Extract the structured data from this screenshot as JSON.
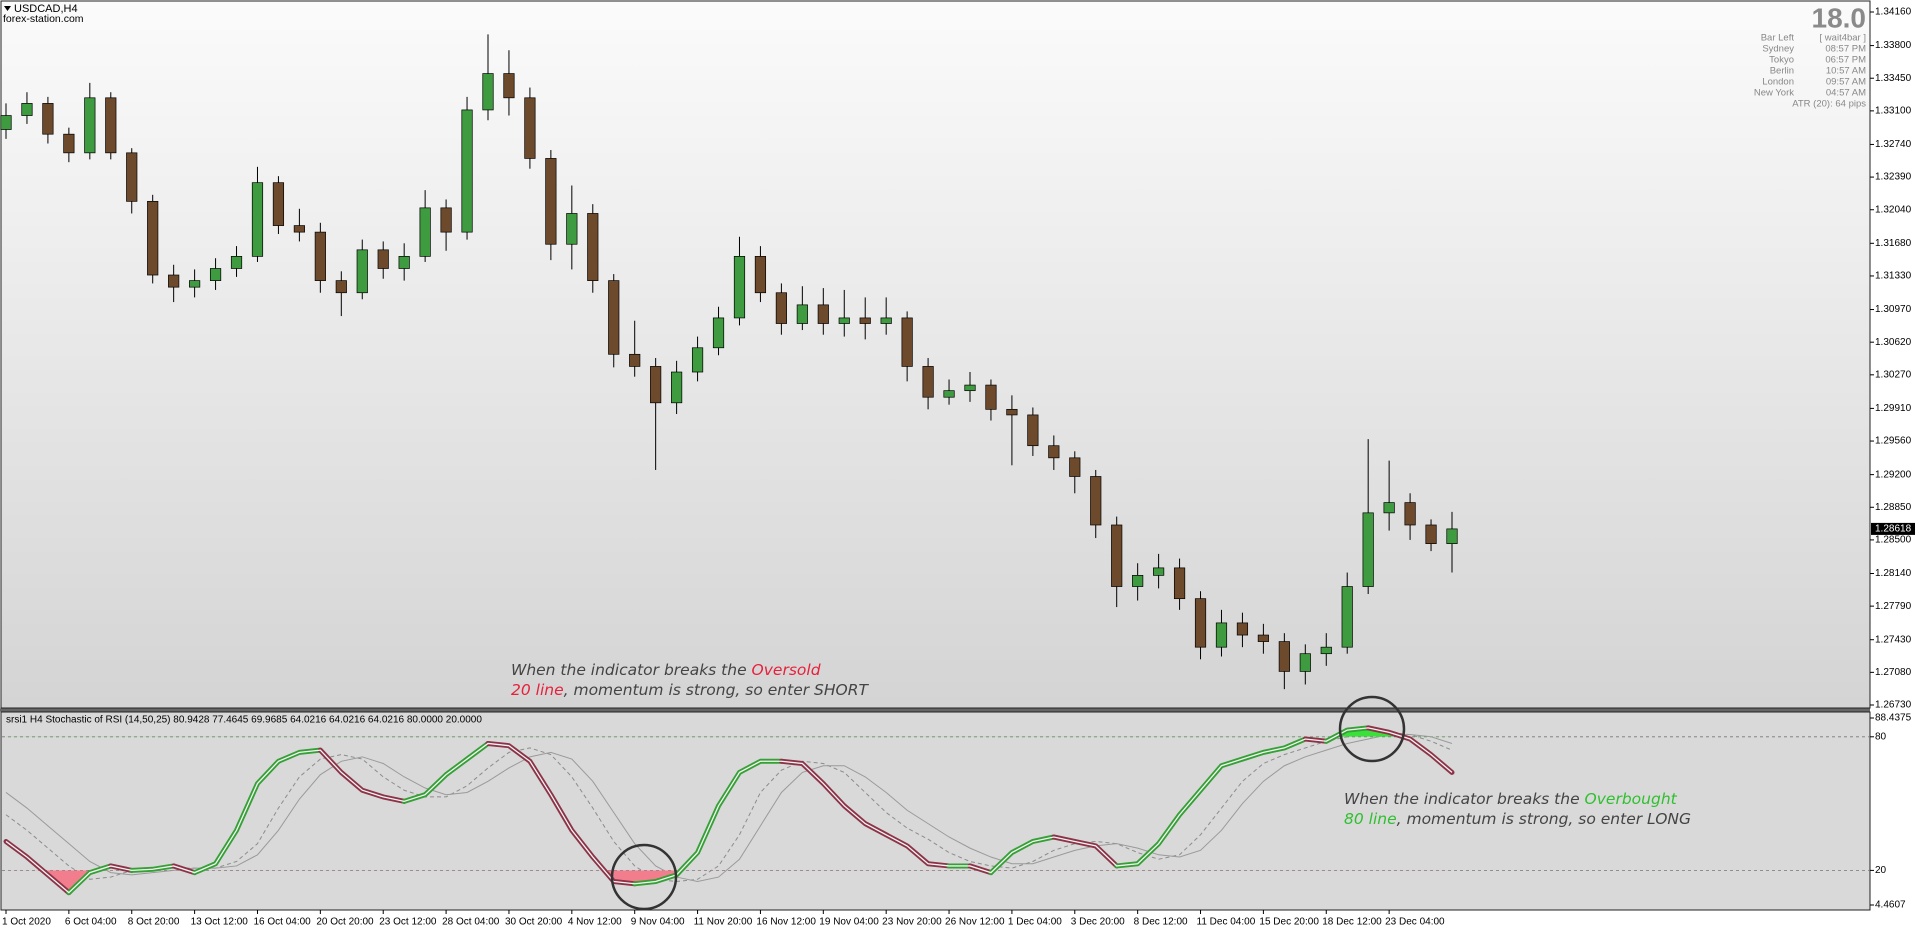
{
  "chart_data": [
    {
      "type": "candlestick",
      "title": "USDCAD,H4",
      "subtitle": "forex-station.com",
      "categories": [
        "1 Oct 2020",
        null,
        null,
        "6 Oct 04:00",
        null,
        null,
        "8 Oct 20:00",
        null,
        null,
        "13 Oct 12:00",
        null,
        null,
        "16 Oct 04:00",
        null,
        null,
        "20 Oct 20:00",
        null,
        null,
        "23 Oct 12:00",
        null,
        null,
        "28 Oct 04:00",
        null,
        null,
        "30 Oct 20:00",
        null,
        null,
        "4 Nov 12:00",
        null,
        null,
        "9 Nov 04:00",
        null,
        null,
        "11 Nov 20:00",
        null,
        null,
        "16 Nov 12:00",
        null,
        null,
        "19 Nov 04:00",
        null,
        null,
        "23 Nov 20:00",
        null,
        null,
        "26 Nov 12:00",
        null,
        null,
        "1 Dec 04:00",
        null,
        null,
        "3 Dec 20:00",
        null,
        null,
        "8 Dec 12:00",
        null,
        null,
        "11 Dec 04:00",
        null,
        null,
        "15 Dec 20:00",
        null,
        null,
        "18 Dec 12:00",
        null,
        null,
        "23 Dec 04:00",
        null,
        null,
        null
      ],
      "open": [
        1.329,
        1.3305,
        1.3318,
        1.3285,
        1.3265,
        1.3324,
        1.3265,
        1.3213,
        1.3134,
        1.3121,
        1.3128,
        1.3141,
        1.3154,
        1.3233,
        1.3187,
        1.318,
        1.3128,
        1.3115,
        1.3161,
        1.3141,
        1.3154,
        1.3206,
        1.318,
        1.3311,
        1.335,
        1.3324,
        1.3259,
        1.3167,
        1.32,
        1.3128,
        1.3049,
        1.3036,
        1.2997,
        1.303,
        1.3056,
        1.3088,
        1.3154,
        1.3115,
        1.3082,
        1.3102,
        1.3082,
        1.3088,
        1.3082,
        1.3088,
        1.3036,
        1.3003,
        1.301,
        1.3016,
        1.299,
        1.2984,
        1.2951,
        1.2938,
        1.2918,
        1.2866,
        1.28,
        1.2812,
        1.282,
        1.2787,
        1.2735,
        1.2761,
        1.2748,
        1.2741,
        1.2709,
        1.2728,
        1.2735,
        1.28,
        1.2879,
        1.289,
        1.2866,
        1.2846
      ],
      "high": [
        1.3318,
        1.333,
        1.3325,
        1.3292,
        1.334,
        1.333,
        1.327,
        1.322,
        1.3145,
        1.314,
        1.3152,
        1.3165,
        1.325,
        1.324,
        1.3205,
        1.319,
        1.3138,
        1.3172,
        1.317,
        1.3168,
        1.3225,
        1.3215,
        1.3325,
        1.3392,
        1.3375,
        1.3335,
        1.3268,
        1.323,
        1.321,
        1.3135,
        1.3085,
        1.3045,
        1.3042,
        1.3068,
        1.31,
        1.3175,
        1.3165,
        1.3125,
        1.3122,
        1.312,
        1.3118,
        1.311,
        1.311,
        1.3095,
        1.3045,
        1.3022,
        1.303,
        1.3022,
        1.3005,
        1.2992,
        1.2962,
        1.2945,
        1.2925,
        1.2875,
        1.2825,
        1.2835,
        1.283,
        1.2795,
        1.2775,
        1.2772,
        1.276,
        1.275,
        1.2738,
        1.275,
        1.2815,
        1.2958,
        1.2935,
        1.29,
        1.2872,
        1.288
      ],
      "low": [
        1.328,
        1.3296,
        1.3275,
        1.3255,
        1.3258,
        1.3258,
        1.32,
        1.3125,
        1.3105,
        1.311,
        1.3118,
        1.3132,
        1.3148,
        1.3178,
        1.317,
        1.3115,
        1.309,
        1.3108,
        1.313,
        1.3128,
        1.3148,
        1.316,
        1.3172,
        1.33,
        1.3305,
        1.3248,
        1.315,
        1.314,
        1.3115,
        1.3035,
        1.3025,
        1.2925,
        1.2985,
        1.302,
        1.3048,
        1.308,
        1.3105,
        1.307,
        1.3075,
        1.307,
        1.3068,
        1.3065,
        1.307,
        1.302,
        1.299,
        1.2995,
        1.2998,
        1.2978,
        1.293,
        1.294,
        1.2925,
        1.29,
        1.2852,
        1.2778,
        1.2785,
        1.2798,
        1.2775,
        1.2722,
        1.2725,
        1.2735,
        1.2728,
        1.269,
        1.2695,
        1.2715,
        1.2728,
        1.2792,
        1.286,
        1.285,
        1.2838,
        1.2815
      ],
      "close": [
        1.3305,
        1.3318,
        1.3285,
        1.3265,
        1.3324,
        1.3265,
        1.3213,
        1.3134,
        1.3121,
        1.3128,
        1.3141,
        1.3154,
        1.3233,
        1.3187,
        1.318,
        1.3128,
        1.3115,
        1.3161,
        1.3141,
        1.3154,
        1.3206,
        1.318,
        1.3311,
        1.335,
        1.3324,
        1.3259,
        1.3167,
        1.32,
        1.3128,
        1.3049,
        1.3036,
        1.2997,
        1.303,
        1.3056,
        1.3088,
        1.3154,
        1.3115,
        1.3082,
        1.3102,
        1.3082,
        1.3088,
        1.3082,
        1.3088,
        1.3036,
        1.3003,
        1.301,
        1.3016,
        1.299,
        1.2984,
        1.2951,
        1.2938,
        1.2918,
        1.2866,
        1.28,
        1.2812,
        1.282,
        1.2787,
        1.2735,
        1.2761,
        1.2748,
        1.2741,
        1.2709,
        1.2728,
        1.2735,
        1.28,
        1.2879,
        1.289,
        1.2866,
        1.2846,
        1.28618
      ],
      "up_color": "#3f9b3f",
      "down_color": "#6e4a2c",
      "ylim": [
        1.2673,
        1.3416
      ],
      "yticks": [
        {
          "value": 1.3416,
          "label": "1.34160"
        },
        {
          "value": 1.338,
          "label": "1.33800"
        },
        {
          "value": 1.3345,
          "label": "1.33450"
        },
        {
          "value": 1.331,
          "label": "1.33100"
        },
        {
          "value": 1.3274,
          "label": "1.32740"
        },
        {
          "value": 1.3239,
          "label": "1.32390"
        },
        {
          "value": 1.3204,
          "label": "1.32040"
        },
        {
          "value": 1.3168,
          "label": "1.31680"
        },
        {
          "value": 1.3133,
          "label": "1.31330"
        },
        {
          "value": 1.3097,
          "label": "1.30970"
        },
        {
          "value": 1.3062,
          "label": "1.30620"
        },
        {
          "value": 1.3027,
          "label": "1.30270"
        },
        {
          "value": 1.2991,
          "label": "1.29910"
        },
        {
          "value": 1.2956,
          "label": "1.29560"
        },
        {
          "value": 1.292,
          "label": "1.29200"
        },
        {
          "value": 1.2885,
          "label": "1.28850"
        },
        {
          "value": 1.285,
          "label": "1.28500"
        },
        {
          "value": 1.2814,
          "label": "1.28140"
        },
        {
          "value": 1.2779,
          "label": "1.27790"
        },
        {
          "value": 1.2743,
          "label": "1.27430"
        },
        {
          "value": 1.2708,
          "label": "1.27080"
        },
        {
          "value": 1.2673,
          "label": "1.26730"
        }
      ],
      "last_price": 1.28618
    },
    {
      "type": "line",
      "title": "srsi1 H4 Stochastic of RSI (14,50,25) 80.9428 77.4645 69.9685 64.0216 64.0216 64.0216 80.0000 20.0000",
      "series": [
        {
          "color": "#35a035",
          "down_color": "#8c3348",
          "values": [
            33,
            26,
            18,
            10,
            19,
            22,
            20,
            20.5,
            22,
            19,
            23,
            38,
            59,
            69,
            73,
            74,
            64,
            56,
            53,
            51,
            54,
            63,
            70,
            77,
            76,
            69,
            54,
            38,
            26,
            15,
            14,
            15,
            18,
            28,
            49,
            64,
            69,
            69,
            68,
            59,
            49,
            41,
            36,
            31,
            23,
            22,
            22,
            19,
            28,
            33,
            35,
            33,
            31,
            22,
            23,
            32,
            45,
            56,
            67,
            70,
            73,
            75,
            79,
            78,
            83,
            84,
            82,
            79,
            72,
            64
          ]
        },
        {
          "color": "#8c8c8c",
          "style": "dashed",
          "values": [
            45,
            38,
            30,
            22,
            16,
            17,
            20,
            21,
            21,
            21,
            21,
            24,
            32,
            48,
            62,
            70,
            72,
            70,
            62,
            56,
            53,
            53,
            58,
            66,
            73,
            75,
            72,
            62,
            48,
            33,
            22,
            16,
            15,
            16,
            22,
            36,
            55,
            65,
            69,
            68,
            64,
            55,
            46,
            39,
            34,
            28,
            24,
            22,
            21,
            24,
            29,
            32,
            33,
            32,
            28,
            25,
            27,
            36,
            48,
            60,
            68,
            72,
            75,
            78,
            80,
            82,
            82,
            81,
            78,
            74
          ]
        },
        {
          "color": "#9a9a9a",
          "style": "solid",
          "values": [
            55,
            48,
            40,
            32,
            24,
            19,
            18,
            19,
            20,
            21,
            21,
            22,
            27,
            38,
            52,
            63,
            69,
            71,
            68,
            62,
            57,
            54,
            55,
            60,
            66,
            71,
            73,
            70,
            60,
            46,
            32,
            22,
            17,
            15,
            17,
            25,
            40,
            55,
            64,
            67,
            67,
            62,
            55,
            47,
            41,
            35,
            30,
            26,
            23,
            23,
            26,
            29,
            31,
            32,
            30,
            27,
            26,
            29,
            38,
            50,
            60,
            67,
            71,
            74,
            77,
            79,
            81,
            81,
            80,
            77
          ]
        }
      ],
      "ylim": [
        4.4607,
        88.4375
      ],
      "yticks": [
        4.4607,
        20,
        80,
        88.4375
      ],
      "oversold_color": "#f27d8c",
      "overbought_color": "#3be03b"
    }
  ],
  "annotations": [
    {
      "lines": [
        [
          {
            "text": "When the indicator breaks the "
          },
          {
            "text": "Oversold",
            "color": "#e8203c"
          }
        ],
        [
          {
            "text": "20 line",
            "color": "#e8203c"
          },
          {
            "text": ", momentum is strong, so enter SHORT"
          }
        ]
      ]
    },
    {
      "lines": [
        [
          {
            "text": "When the indicator breaks the "
          },
          {
            "text": "Overbought",
            "color": "#2fc02f"
          }
        ],
        [
          {
            "text": "80 line",
            "color": "#2fc02f"
          },
          {
            "text": ", momentum is strong, so enter LONG"
          }
        ]
      ]
    }
  ],
  "info_panel": {
    "countdown": "18.0",
    "rows": [
      [
        "Bar Left",
        "[ wait4bar ]"
      ],
      [
        "Sydney",
        "08:57 PM"
      ],
      [
        "Tokyo",
        "06:57 PM"
      ],
      [
        "Berlin",
        "10:57 AM"
      ],
      [
        "London",
        "09:57 AM"
      ],
      [
        "New York",
        "04:57 AM"
      ]
    ],
    "atr": "ATR (20): 64 pips"
  }
}
